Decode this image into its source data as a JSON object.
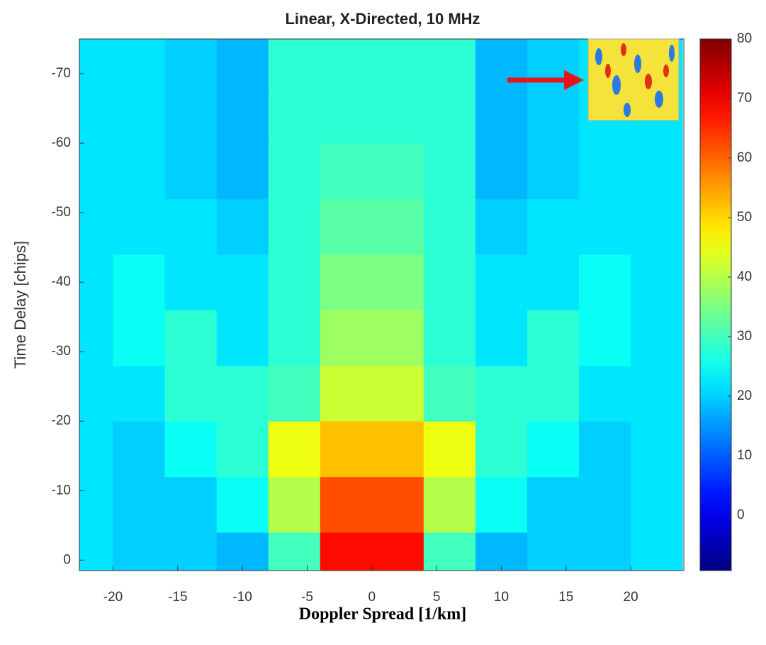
{
  "chart_data": {
    "type": "heatmap",
    "title": "Linear, X-Directed, 10 MHz",
    "x_label": "Doppler Spread [1/km]",
    "y_label": "Time Delay [chips]",
    "colormap": "jet",
    "x": [
      -22,
      -18,
      -14,
      -10,
      -6,
      -2,
      2,
      6,
      10,
      14,
      18,
      22
    ],
    "y": [
      0,
      -8,
      -16,
      -24,
      -32,
      -40,
      -48,
      -56,
      -64,
      -72
    ],
    "z": [
      [
        22,
        20,
        20,
        18,
        30,
        68,
        68,
        30,
        18,
        20,
        20,
        22
      ],
      [
        22,
        20,
        20,
        25,
        40,
        62,
        62,
        40,
        25,
        20,
        20,
        22
      ],
      [
        22,
        20,
        25,
        28,
        45,
        52,
        52,
        45,
        28,
        25,
        20,
        22
      ],
      [
        22,
        22,
        28,
        28,
        30,
        42,
        42,
        30,
        28,
        28,
        22,
        22
      ],
      [
        22,
        25,
        28,
        22,
        28,
        38,
        38,
        28,
        22,
        28,
        25,
        22
      ],
      [
        22,
        25,
        22,
        22,
        28,
        35,
        35,
        28,
        22,
        22,
        25,
        22
      ],
      [
        22,
        22,
        22,
        20,
        28,
        32,
        32,
        28,
        20,
        22,
        22,
        22
      ],
      [
        22,
        22,
        20,
        18,
        28,
        30,
        30,
        28,
        18,
        20,
        22,
        22
      ],
      [
        22,
        22,
        20,
        18,
        28,
        28,
        28,
        28,
        18,
        20,
        22,
        22
      ],
      [
        22,
        22,
        20,
        18,
        28,
        28,
        28,
        28,
        18,
        20,
        22,
        22
      ]
    ],
    "xlim": [
      -22.6,
      24.1
    ],
    "xticks": [
      -20,
      -15,
      -10,
      -5,
      0,
      5,
      10,
      15,
      20
    ],
    "ylim": [
      1.5,
      -75
    ],
    "yticks": [
      0,
      -10,
      -20,
      -30,
      -40,
      -50,
      -60,
      -70
    ],
    "clim": [
      -9.3,
      80
    ],
    "cticks": [
      0,
      10,
      20,
      30,
      40,
      50,
      60,
      70,
      80
    ]
  }
}
